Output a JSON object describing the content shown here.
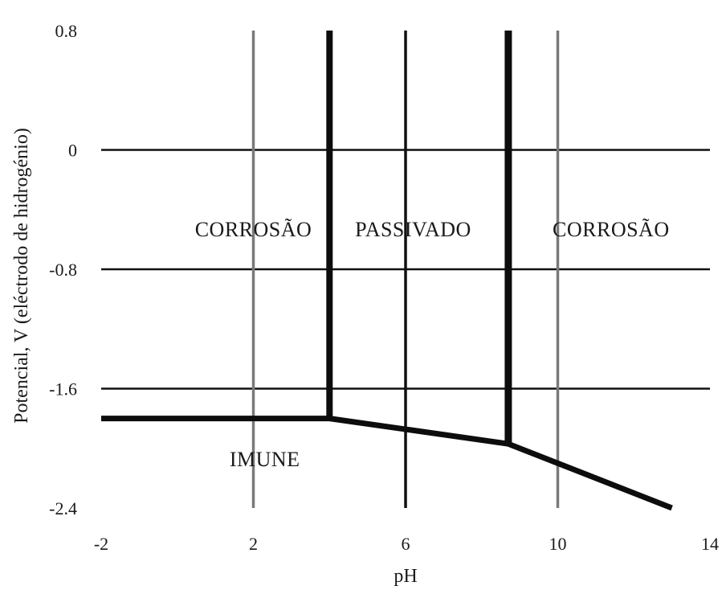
{
  "chart_data": {
    "type": "line",
    "title": "",
    "xlabel": "pH",
    "ylabel": "Potencial, V (eléctrodo de hidrogénio)",
    "xlim": [
      -2,
      14
    ],
    "ylim": [
      -2.4,
      0.8
    ],
    "x_ticks": [
      -2,
      2,
      6,
      10,
      14
    ],
    "y_ticks": [
      0.8,
      0,
      -0.8,
      -1.6,
      -2.4
    ],
    "tick_labels": {
      "x": [
        "-2",
        "2",
        "6",
        "10",
        "14"
      ],
      "y": [
        "0.8",
        "0",
        "-0.8",
        "-1.6",
        "-2.4"
      ]
    },
    "grid": {
      "horizontal": [
        0,
        -0.8,
        -1.6
      ],
      "vertical": [
        2,
        6,
        10
      ]
    },
    "series": [
      {
        "x": [
          -2,
          4,
          8.7,
          13
        ],
        "y": [
          -1.8,
          -1.8,
          -1.97,
          -2.4
        ]
      },
      {
        "x": [
          4,
          4
        ],
        "y": [
          -1.8,
          0.8
        ]
      },
      {
        "x": [
          8.7,
          8.7
        ],
        "y": [
          -1.97,
          0.8
        ]
      }
    ],
    "annotations": [
      {
        "text": "CORROSÃO",
        "x": 2.0,
        "y": -0.58
      },
      {
        "text": "PASSIVADO",
        "x": 6.2,
        "y": -0.58
      },
      {
        "text": "CORROSÃO",
        "x": 11.4,
        "y": -0.58
      },
      {
        "text": "IMUNE",
        "x": 2.3,
        "y": -2.12
      }
    ]
  }
}
